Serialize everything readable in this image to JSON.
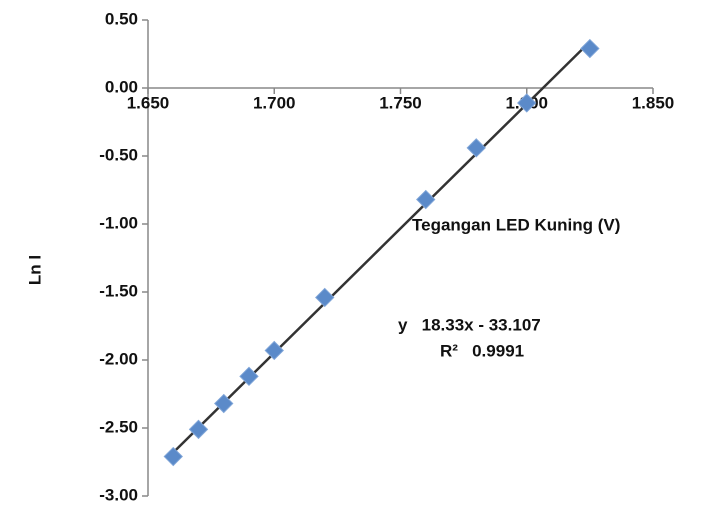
{
  "chart_data": {
    "type": "scatter",
    "x_label": "Tegangan LED Kuning (V)",
    "y_label": "Ln I",
    "series": [
      {
        "name": "Ln I",
        "color": "#5b8ac9",
        "x": [
          1.66,
          1.67,
          1.68,
          1.69,
          1.7,
          1.72,
          1.76,
          1.78,
          1.8,
          1.825
        ],
        "values": [
          -2.71,
          -2.51,
          -2.32,
          -2.12,
          -1.93,
          -1.54,
          -0.82,
          -0.44,
          -0.11,
          0.29
        ]
      }
    ],
    "trendline": {
      "color": "#333333",
      "x": [
        1.66,
        1.825
      ],
      "values": [
        -2.68,
        0.34
      ]
    },
    "annotations": [
      "y   18.33x - 33.107",
      "R²   0.9991"
    ],
    "xlim": [
      1.65,
      1.85
    ],
    "xticks": [
      {
        "value": 1.65,
        "label": "1.650"
      },
      {
        "value": 1.7,
        "label": "1.700"
      },
      {
        "value": 1.75,
        "label": "1.750"
      },
      {
        "value": 1.8,
        "label": "1.800"
      },
      {
        "value": 1.85,
        "label": "1.850"
      }
    ],
    "ylim": [
      -3,
      0.5
    ],
    "yticks": [
      {
        "value": 0.5,
        "label": "0.50"
      },
      {
        "value": 0,
        "label": "0.00"
      },
      {
        "value": -0.5,
        "label": "-0.50"
      },
      {
        "value": -1,
        "label": "-1.00"
      },
      {
        "value": -1.5,
        "label": "-1.50"
      },
      {
        "value": -2,
        "label": "-2.00"
      },
      {
        "value": -2.5,
        "label": "-2.50"
      },
      {
        "value": -3,
        "label": "-3.00"
      }
    ]
  }
}
